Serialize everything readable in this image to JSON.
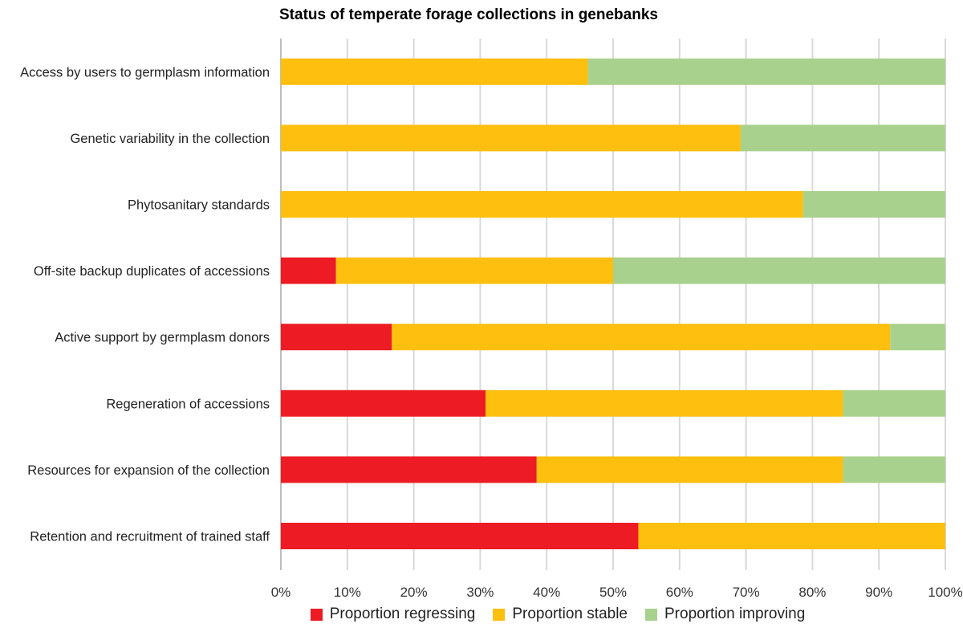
{
  "chart_data": {
    "type": "bar",
    "orientation": "horizontal",
    "stacked": true,
    "title": "Status of temperate forage collections in genebanks",
    "xlabel": "",
    "ylabel": "",
    "xlim": [
      0,
      100
    ],
    "x_ticks": [
      "0%",
      "10%",
      "20%",
      "30%",
      "40%",
      "50%",
      "60%",
      "70%",
      "80%",
      "90%",
      "100%"
    ],
    "grid": "vertical",
    "legend_position": "bottom",
    "categories": [
      "Access by users to germplasm information",
      "Genetic variability in the collection",
      "Phytosanitary standards",
      "Off-site backup duplicates of accessions",
      "Active support by germplasm donors",
      "Regeneration of accessions",
      "Resources for expansion of the collection",
      "Retention and recruitment of trained staff"
    ],
    "series": [
      {
        "name": "Proportion regressing",
        "color": "#ed1c24",
        "values": [
          0,
          0,
          0,
          8.3,
          16.7,
          30.8,
          38.5,
          53.8
        ]
      },
      {
        "name": "Proportion stable",
        "color": "#ffbf0f",
        "values": [
          46.2,
          69.2,
          78.6,
          41.7,
          75.0,
          53.8,
          46.1,
          46.2
        ]
      },
      {
        "name": "Proportion improving",
        "color": "#a9d18e",
        "values": [
          53.8,
          30.8,
          21.4,
          50.0,
          8.3,
          15.4,
          15.4,
          0
        ]
      }
    ]
  }
}
